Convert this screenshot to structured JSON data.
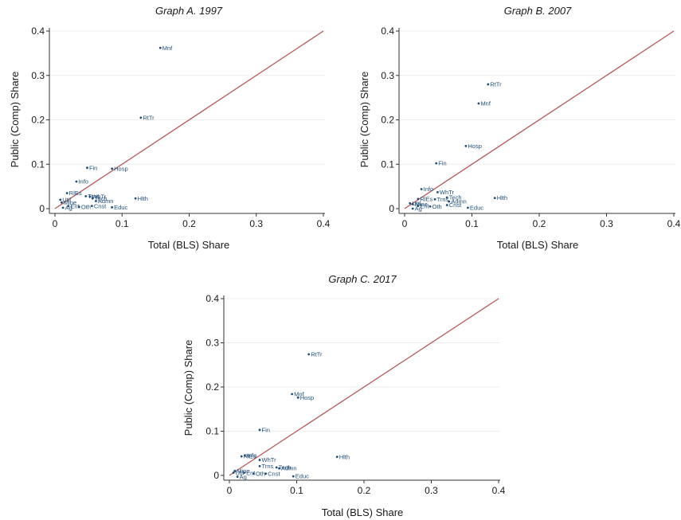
{
  "colors": {
    "points": "#1f4e79",
    "reference_line": "#b5585a",
    "grid": "#eeeeee"
  },
  "chart_data": [
    {
      "type": "scatter",
      "title": "Graph A. 1997",
      "xlabel": "Total (BLS) Share",
      "ylabel": "Public (Comp) Share",
      "xlim": [
        0,
        0.4
      ],
      "ylim": [
        0,
        0.4
      ],
      "xticks": [
        "0",
        "0.1",
        "0.2",
        "0.3",
        "0.4"
      ],
      "yticks": [
        "0",
        "0.1",
        "0.2",
        "0.3",
        "0.4"
      ],
      "grid": true,
      "reference_line": "y = x",
      "points": [
        {
          "label": "Mnf",
          "x": 0.157,
          "y": 0.362
        },
        {
          "label": "RtTr",
          "x": 0.128,
          "y": 0.205
        },
        {
          "label": "Hosp",
          "x": 0.085,
          "y": 0.09
        },
        {
          "label": "Fin",
          "x": 0.048,
          "y": 0.092
        },
        {
          "label": "Info",
          "x": 0.032,
          "y": 0.061
        },
        {
          "label": "RlEs",
          "x": 0.018,
          "y": 0.035
        },
        {
          "label": "Trns",
          "x": 0.046,
          "y": 0.028
        },
        {
          "label": "WhTr",
          "x": 0.052,
          "y": 0.027
        },
        {
          "label": "Tech",
          "x": 0.056,
          "y": 0.023
        },
        {
          "label": "Admn",
          "x": 0.061,
          "y": 0.017
        },
        {
          "label": "Hlth",
          "x": 0.12,
          "y": 0.023
        },
        {
          "label": "Util",
          "x": 0.008,
          "y": 0.02
        },
        {
          "label": "Mine",
          "x": 0.01,
          "y": 0.014
        },
        {
          "label": "Ent",
          "x": 0.02,
          "y": 0.006
        },
        {
          "label": "Oth",
          "x": 0.036,
          "y": 0.004
        },
        {
          "label": "Cnst",
          "x": 0.055,
          "y": 0.006
        },
        {
          "label": "Educ",
          "x": 0.085,
          "y": 0.003
        },
        {
          "label": "Ag",
          "x": 0.012,
          "y": 0.002
        }
      ]
    },
    {
      "type": "scatter",
      "title": "Graph B. 2007",
      "xlabel": "Total (BLS) Share",
      "ylabel": "Public (Comp) Share",
      "xlim": [
        0,
        0.4
      ],
      "ylim": [
        0,
        0.4
      ],
      "xticks": [
        "0",
        "0.1",
        "0.2",
        "0.3",
        "0.4"
      ],
      "yticks": [
        "0",
        "0.1",
        "0.2",
        "0.3",
        "0.4"
      ],
      "grid": true,
      "reference_line": "y = x",
      "points": [
        {
          "label": "RtTr",
          "x": 0.124,
          "y": 0.28
        },
        {
          "label": "Mnf",
          "x": 0.11,
          "y": 0.237
        },
        {
          "label": "Hosp",
          "x": 0.091,
          "y": 0.141
        },
        {
          "label": "Fin",
          "x": 0.047,
          "y": 0.102
        },
        {
          "label": "Info",
          "x": 0.025,
          "y": 0.044
        },
        {
          "label": "WhTr",
          "x": 0.049,
          "y": 0.037
        },
        {
          "label": "Tech",
          "x": 0.063,
          "y": 0.025
        },
        {
          "label": "Trns",
          "x": 0.045,
          "y": 0.021
        },
        {
          "label": "RlEs",
          "x": 0.02,
          "y": 0.022
        },
        {
          "label": "Admn",
          "x": 0.066,
          "y": 0.016
        },
        {
          "label": "Hlth",
          "x": 0.134,
          "y": 0.024
        },
        {
          "label": "Cnst",
          "x": 0.063,
          "y": 0.008
        },
        {
          "label": "Oth",
          "x": 0.038,
          "y": 0.005
        },
        {
          "label": "Educ",
          "x": 0.094,
          "y": 0.002
        },
        {
          "label": "Util",
          "x": 0.008,
          "y": 0.012
        },
        {
          "label": "Mine",
          "x": 0.012,
          "y": 0.01
        },
        {
          "label": "Ent",
          "x": 0.02,
          "y": 0.006
        },
        {
          "label": "Ag",
          "x": 0.012,
          "y": 0.0
        }
      ]
    },
    {
      "type": "scatter",
      "title": "Graph C. 2017",
      "xlabel": "Total (BLS) Share",
      "ylabel": "Public (Comp) Share",
      "xlim": [
        0,
        0.4
      ],
      "ylim": [
        0,
        0.4
      ],
      "xticks": [
        "0",
        "0.1",
        "0.2",
        "0.3",
        "0.4"
      ],
      "yticks": [
        "0",
        "0.1",
        "0.2",
        "0.3",
        "0.4"
      ],
      "grid": true,
      "reference_line": "y = x",
      "points": [
        {
          "label": "RtTr",
          "x": 0.118,
          "y": 0.274
        },
        {
          "label": "Mnf",
          "x": 0.093,
          "y": 0.184
        },
        {
          "label": "Hosp",
          "x": 0.102,
          "y": 0.176
        },
        {
          "label": "Fin",
          "x": 0.045,
          "y": 0.103
        },
        {
          "label": "Info",
          "x": 0.023,
          "y": 0.045
        },
        {
          "label": "RlEs",
          "x": 0.018,
          "y": 0.043
        },
        {
          "label": "WhTr",
          "x": 0.045,
          "y": 0.035
        },
        {
          "label": "Trns",
          "x": 0.045,
          "y": 0.021
        },
        {
          "label": "Tech",
          "x": 0.07,
          "y": 0.018
        },
        {
          "label": "Admn",
          "x": 0.074,
          "y": 0.016
        },
        {
          "label": "Hlth",
          "x": 0.16,
          "y": 0.042
        },
        {
          "label": "Mine",
          "x": 0.008,
          "y": 0.01
        },
        {
          "label": "Util",
          "x": 0.006,
          "y": 0.006
        },
        {
          "label": "Ent",
          "x": 0.022,
          "y": 0.006
        },
        {
          "label": "Oth",
          "x": 0.036,
          "y": 0.004
        },
        {
          "label": "Cnst",
          "x": 0.054,
          "y": 0.004
        },
        {
          "label": "Educ",
          "x": 0.095,
          "y": -0.002
        },
        {
          "label": "Ag",
          "x": 0.012,
          "y": -0.003
        }
      ]
    }
  ]
}
